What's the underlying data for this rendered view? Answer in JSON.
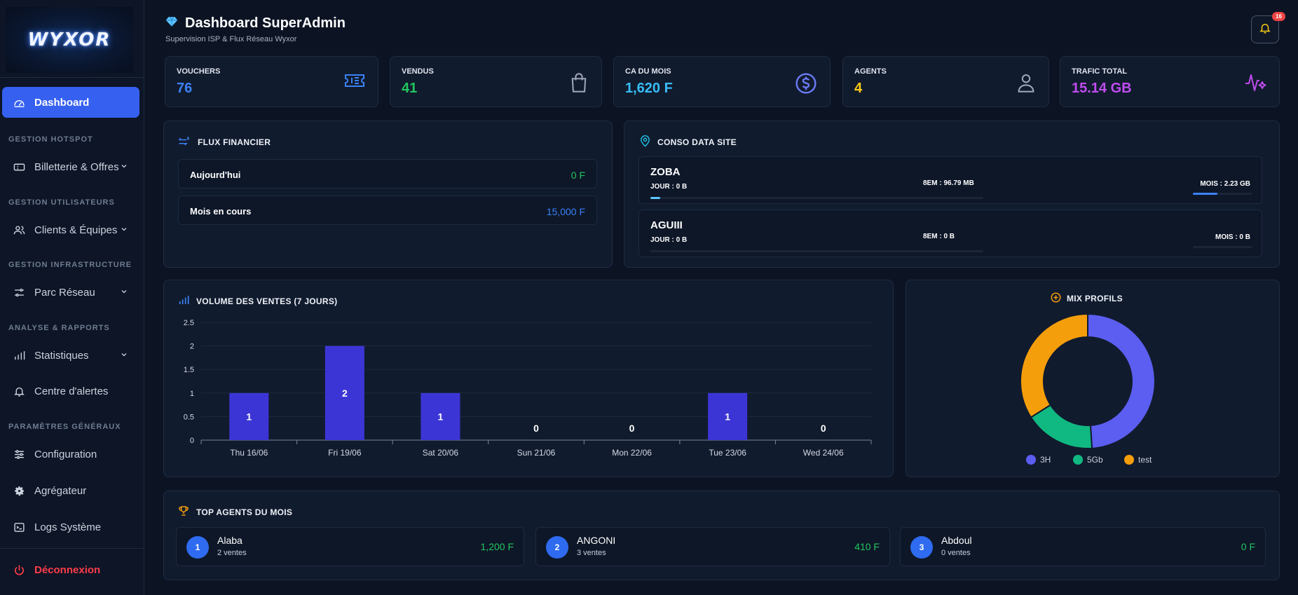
{
  "app": {
    "logo_text": "WYXOR"
  },
  "header": {
    "title": "Dashboard SuperAdmin",
    "subtitle": "Supervision ISP & Flux Réseau Wyxor",
    "notif_count": "16"
  },
  "sidebar": {
    "dashboard": "Dashboard",
    "sections": {
      "hotspot": "GESTION HOTSPOT",
      "users": "GESTION UTILISATEURS",
      "infra": "GESTION INFRASTRUCTURE",
      "analyse": "ANALYSE & RAPPORTS",
      "params": "PARAMÈTRES GÉNÉRAUX"
    },
    "items": {
      "billetterie": "Billetterie & Offres",
      "clients": "Clients & Équipes",
      "parc": "Parc Réseau",
      "stats": "Statistiques",
      "alertes": "Centre d'alertes",
      "config": "Configuration",
      "agregateur": "Agrégateur",
      "logs": "Logs Système"
    },
    "logout": "Déconnexion"
  },
  "stats": {
    "vouchers": {
      "label": "VOUCHERS",
      "value": "76",
      "color": "#3b82f6"
    },
    "vendus": {
      "label": "VENDUS",
      "value": "41",
      "color": "#22c55e"
    },
    "ca": {
      "label": "CA DU MOIS",
      "value": "1,620 F",
      "color": "#38bdf8"
    },
    "agents": {
      "label": "AGENTS",
      "value": "4",
      "color": "#facc15"
    },
    "trafic": {
      "label": "TRAFIC TOTAL",
      "value": "15.14 GB",
      "color": "#c04cf0"
    }
  },
  "flux": {
    "title": "FLUX FINANCIER",
    "rows": [
      {
        "label": "Aujourd'hui",
        "value": "0 F",
        "color": "#22c55e"
      },
      {
        "label": "Mois en cours",
        "value": "15,000 F",
        "color": "#3b82f6"
      }
    ]
  },
  "conso": {
    "title": "CONSO DATA SITE",
    "sites": [
      {
        "name": "ZOBA",
        "jour": "JOUR : 0 B",
        "sem": "8EM : 96.79 MB",
        "mois": "MOIS : 2.23 GB",
        "jour_fill": 0.18,
        "mois_fill": 0.42
      },
      {
        "name": "AGUIII",
        "jour": "JOUR : 0 B",
        "sem": "8EM : 0 B",
        "mois": "MOIS : 0 B",
        "jour_fill": 0,
        "mois_fill": 0
      }
    ]
  },
  "ventes": {
    "title": "VOLUME DES VENTES (7 JOURS)"
  },
  "chart_data": {
    "type": "bar",
    "title": "VOLUME DES VENTES (7 JOURS)",
    "categories": [
      "Thu 16/06",
      "Fri 19/06",
      "Sat 20/06",
      "Sun 21/06",
      "Mon 22/06",
      "Tue 23/06",
      "Wed 24/06"
    ],
    "values": [
      1,
      2,
      1,
      0,
      0,
      1,
      0
    ],
    "ylim": [
      0,
      2.5
    ],
    "yticks": [
      "0",
      "0.5",
      "1",
      "1.5",
      "2",
      "2.5"
    ],
    "bar_color": "#3c35d6",
    "grid": true
  },
  "mix": {
    "title": "MIX PROFILS",
    "slices": [
      {
        "name": "3H",
        "value": 49,
        "color": "#5b5ef0"
      },
      {
        "name": "5Gb",
        "value": 17,
        "color": "#10b981"
      },
      {
        "name": "test",
        "value": 34,
        "color": "#f59e0b"
      }
    ]
  },
  "top_agents": {
    "title": "TOP AGENTS DU MOIS",
    "items": [
      {
        "rank": "1",
        "name": "Alaba",
        "sales": "2 ventes",
        "amount": "1,200 F"
      },
      {
        "rank": "2",
        "name": "ANGONI",
        "sales": "3 ventes",
        "amount": "410 F"
      },
      {
        "rank": "3",
        "name": "Abdoul",
        "sales": "0 ventes",
        "amount": "0 F"
      }
    ]
  }
}
